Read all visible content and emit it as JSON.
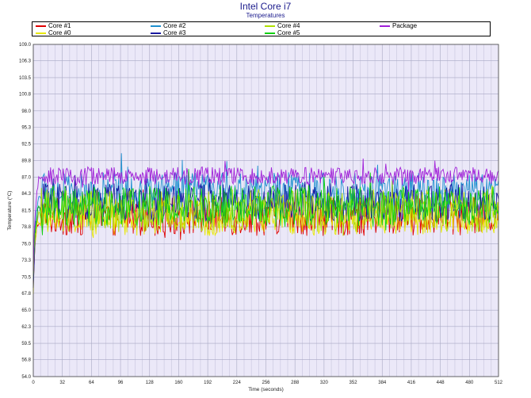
{
  "chart_data": {
    "type": "line",
    "title": "Intel Core i7",
    "subtitle": "Temperatures",
    "xlabel": "Time (seconds)",
    "ylabel": "Temperature (°C)",
    "xlim": [
      0,
      512
    ],
    "ylim": [
      54.0,
      109.0
    ],
    "xticks": [
      0,
      32,
      64,
      96,
      128,
      160,
      192,
      224,
      256,
      288,
      320,
      352,
      384,
      416,
      448,
      480,
      512
    ],
    "yticks": [
      "54.0",
      "56.8",
      "59.5",
      "62.3",
      "65.0",
      "67.8",
      "70.5",
      "73.3",
      "76.0",
      "78.8",
      "81.5",
      "84.3",
      "87.0",
      "89.8",
      "92.5",
      "95.3",
      "98.0",
      "100.8",
      "103.5",
      "106.3",
      "109.0"
    ],
    "grid": true,
    "legend_position": "top",
    "series": [
      {
        "name": "Core #1",
        "color": "#e00000",
        "start": 69,
        "level": 80.5,
        "spread": 3.2,
        "spikes": 1.5
      },
      {
        "name": "Core #0",
        "color": "#e8e800",
        "start": 68.5,
        "level": 80.3,
        "spread": 3.0,
        "spikes": 1.5
      },
      {
        "name": "Core #2",
        "color": "#1e90d0",
        "start": 70,
        "level": 84.8,
        "spread": 3.0,
        "spikes": 3.5
      },
      {
        "name": "Core #3",
        "color": "#1a1aa0",
        "start": 68,
        "level": 82.8,
        "spread": 3.2,
        "spikes": 2.5
      },
      {
        "name": "Core #4",
        "color": "#b0e000",
        "start": 71,
        "level": 81.5,
        "spread": 3.6,
        "spikes": 2.5
      },
      {
        "name": "Core #5",
        "color": "#10d010",
        "start": 72,
        "level": 82.2,
        "spread": 3.4,
        "spikes": 3.0
      },
      {
        "name": "Package",
        "color": "#a020d8",
        "start": 70.5,
        "level": 87.2,
        "spread": 1.5,
        "spikes": 2.0
      }
    ]
  }
}
